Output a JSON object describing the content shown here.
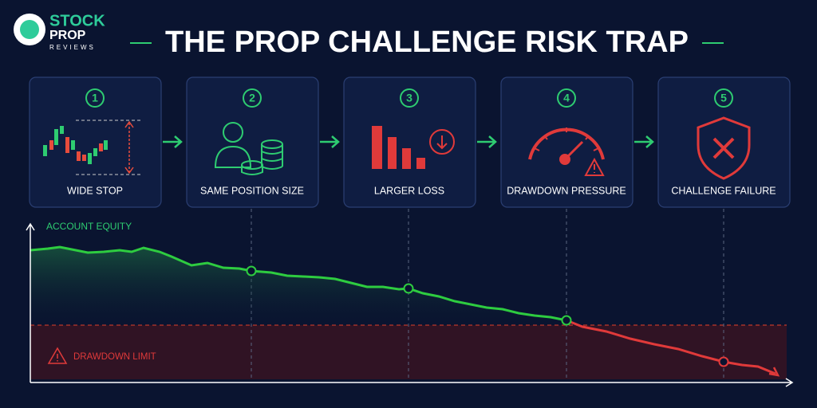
{
  "logo": {
    "line1": "STOCK",
    "line2": "PROP",
    "line3": "REVIEWS"
  },
  "title": "THE PROP CHALLENGE RISK TRAP",
  "steps": [
    {
      "number": "1",
      "label": "WIDE STOP"
    },
    {
      "number": "2",
      "label": "SAME POSITION SIZE"
    },
    {
      "number": "3",
      "label": "LARGER LOSS"
    },
    {
      "number": "4",
      "label": "DRAWDOWN PRESSURE"
    },
    {
      "number": "5",
      "label": "CHALLENGE FAILURE"
    }
  ],
  "chart": {
    "equity_label": "ACCOUNT EQUITY",
    "limit_label": "DRAWDOWN LIMIT"
  }
}
